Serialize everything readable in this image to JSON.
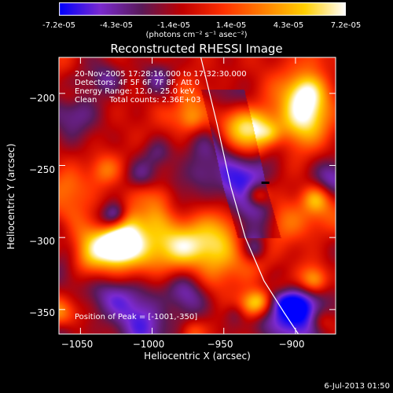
{
  "colorbar": {
    "ticks": [
      "-7.2e-05",
      "-4.3e-05",
      "-1.4e-05",
      "1.4e-05",
      "4.3e-05",
      "7.2e-05"
    ],
    "units": "(photons cm⁻² s⁻¹ asec⁻²)",
    "colors": [
      "#0000ff",
      "#7b2ad0",
      "#5a1a5a",
      "#c00000",
      "#ff3000",
      "#ff8000",
      "#ffd000",
      "#ffffff"
    ]
  },
  "chart_data": {
    "type": "heatmap",
    "title": "Reconstructed RHESSI Image",
    "xlabel": "Heliocentric X (arcsec)",
    "ylabel": "Heliocentric Y (arcsec)",
    "xlim": [
      -1065,
      -872
    ],
    "ylim": [
      -367,
      -175
    ],
    "xticks": [
      "−1050",
      "−1000",
      "−950",
      "−900"
    ],
    "xtick_values": [
      -1050,
      -1000,
      -950,
      -900
    ],
    "yticks": [
      "−200",
      "−250",
      "−300",
      "−350"
    ],
    "ytick_values": [
      -200,
      -250,
      -300,
      -350
    ],
    "vmin": -7.2e-05,
    "vmax": 7.2e-05,
    "annotations": [
      "20-Nov-2005 17:28:16.000 to 17:32:30.000",
      "Detectors: 4F 5F 6F 7F 8F, Att 0",
      "Energy Range: 12.0 - 25.0 keV",
      "Clean     Total counts: 2.36E+03"
    ],
    "peak_label": "Position of Peak = [-1001,-350]",
    "limb": [
      [
        -966,
        -175
      ],
      [
        -955,
        -220
      ],
      [
        -945,
        -265
      ],
      [
        -935,
        -300
      ],
      [
        -922,
        -330
      ],
      [
        -908,
        -352
      ],
      [
        -898,
        -367
      ]
    ],
    "marker": [
      -921,
      -262
    ]
  },
  "footer": {
    "timestamp": "6-Jul-2013 01:50"
  }
}
